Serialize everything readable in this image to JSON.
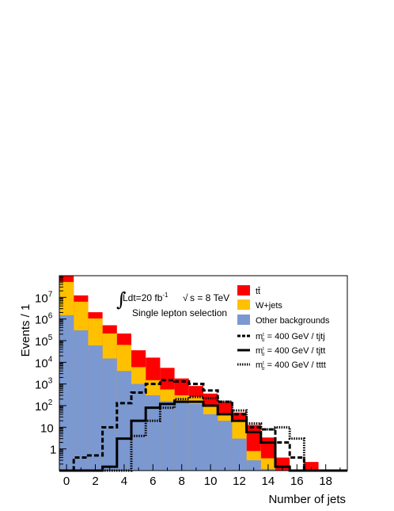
{
  "chart_data": {
    "type": "histogram-stacked",
    "xlabel": "Number of jets",
    "ylabel": "Events / 1",
    "ylog": true,
    "xlim": [
      -0.5,
      19.5
    ],
    "ylim": [
      0.1,
      100000000
    ],
    "x_ticks": [
      {
        "value": 0,
        "label": "0"
      },
      {
        "value": 2,
        "label": "2"
      },
      {
        "value": 4,
        "label": "4"
      },
      {
        "value": 6,
        "label": "6"
      },
      {
        "value": 8,
        "label": "8"
      },
      {
        "value": 10,
        "label": "10"
      },
      {
        "value": 12,
        "label": "12"
      },
      {
        "value": 14,
        "label": "14"
      },
      {
        "value": 16,
        "label": "16"
      },
      {
        "value": 18,
        "label": "18"
      }
    ],
    "y_ticks": [
      {
        "value": 1,
        "base": "1",
        "exp": ""
      },
      {
        "value": 10,
        "base": "10",
        "exp": ""
      },
      {
        "value": 100,
        "base": "10",
        "exp": "2"
      },
      {
        "value": 1000,
        "base": "10",
        "exp": "3"
      },
      {
        "value": 10000,
        "base": "10",
        "exp": "4"
      },
      {
        "value": 100000,
        "base": "10",
        "exp": "5"
      },
      {
        "value": 1000000,
        "base": "10",
        "exp": "6"
      },
      {
        "value": 10000000,
        "base": "10",
        "exp": "7"
      }
    ],
    "bin_edges": [
      -0.5,
      0.5,
      1.5,
      2.5,
      3.5,
      4.5,
      5.5,
      6.5,
      7.5,
      8.5,
      9.5,
      10.5,
      11.5,
      12.5,
      13.5,
      14.5,
      15.5,
      16.5,
      17.5,
      18.5,
      19.5
    ],
    "stack": [
      {
        "name": "Other backgrounds",
        "color": "#7b98d0",
        "values": [
          1500000,
          300000,
          60000,
          15000,
          4000,
          1000,
          300,
          160,
          150,
          120,
          40,
          20,
          3,
          0.3,
          0.12,
          0,
          0,
          0,
          0,
          0
        ]
      },
      {
        "name": "W+jets",
        "color": "#ffc000",
        "values": [
          50000000,
          6000000,
          1000000,
          200000,
          60000,
          5000,
          1200,
          400,
          150,
          140,
          60,
          25,
          20,
          0.5,
          0.25,
          0,
          0,
          0,
          0,
          0
        ]
      },
      {
        "name": "tt̄",
        "color": "#ff0000",
        "values": [
          50000000,
          6000000,
          1000000,
          300000,
          150000,
          30000,
          15000,
          5000,
          1500,
          550,
          260,
          100,
          25,
          12,
          3,
          0.4,
          0,
          0.25,
          0,
          0
        ]
      }
    ],
    "signals": [
      {
        "name": "m_σ = 400 GeV / tjtj",
        "style": "dashed",
        "values": [
          0,
          0.4,
          0.5,
          10,
          130,
          400,
          1000,
          1500,
          1300,
          1000,
          500,
          150,
          40,
          10,
          8,
          2,
          0.4,
          0,
          0,
          0
        ]
      },
      {
        "name": "m_σ = 400 GeV / tjtt",
        "style": "solid",
        "values": [
          0,
          0,
          0,
          0.15,
          3,
          20,
          80,
          120,
          150,
          150,
          100,
          40,
          20,
          6,
          2,
          0.15,
          0,
          0,
          0,
          0
        ]
      },
      {
        "name": "m_σ = 400 GeV / tttt",
        "style": "dotted",
        "values": [
          0,
          0,
          0,
          0,
          0,
          4,
          20,
          80,
          200,
          250,
          220,
          150,
          60,
          15,
          8,
          10,
          3,
          0,
          0,
          0
        ]
      }
    ],
    "legend": [
      {
        "label": "tt̄",
        "kind": "fill",
        "color": "#ff0000"
      },
      {
        "label": "W+jets",
        "kind": "fill",
        "color": "#ffc000"
      },
      {
        "label": "Other backgrounds",
        "kind": "fill",
        "color": "#7b98d0"
      },
      {
        "label": "m = 400 GeV / tjtj",
        "kind": "line",
        "style": "dashed",
        "sup": "t",
        "sub": "σ"
      },
      {
        "label": "m = 400 GeV / tjtt",
        "kind": "line",
        "style": "solid",
        "sup": "t",
        "sub": "σ"
      },
      {
        "label": "m = 400 GeV / tttt",
        "kind": "line",
        "style": "dotted",
        "sup": "t",
        "sub": "σ"
      }
    ],
    "annotations": {
      "lumi": "Ldt=20 fb",
      "lumi_exp": "-1",
      "energy": "s = 8 TeV",
      "selection": "Single lepton selection"
    }
  }
}
